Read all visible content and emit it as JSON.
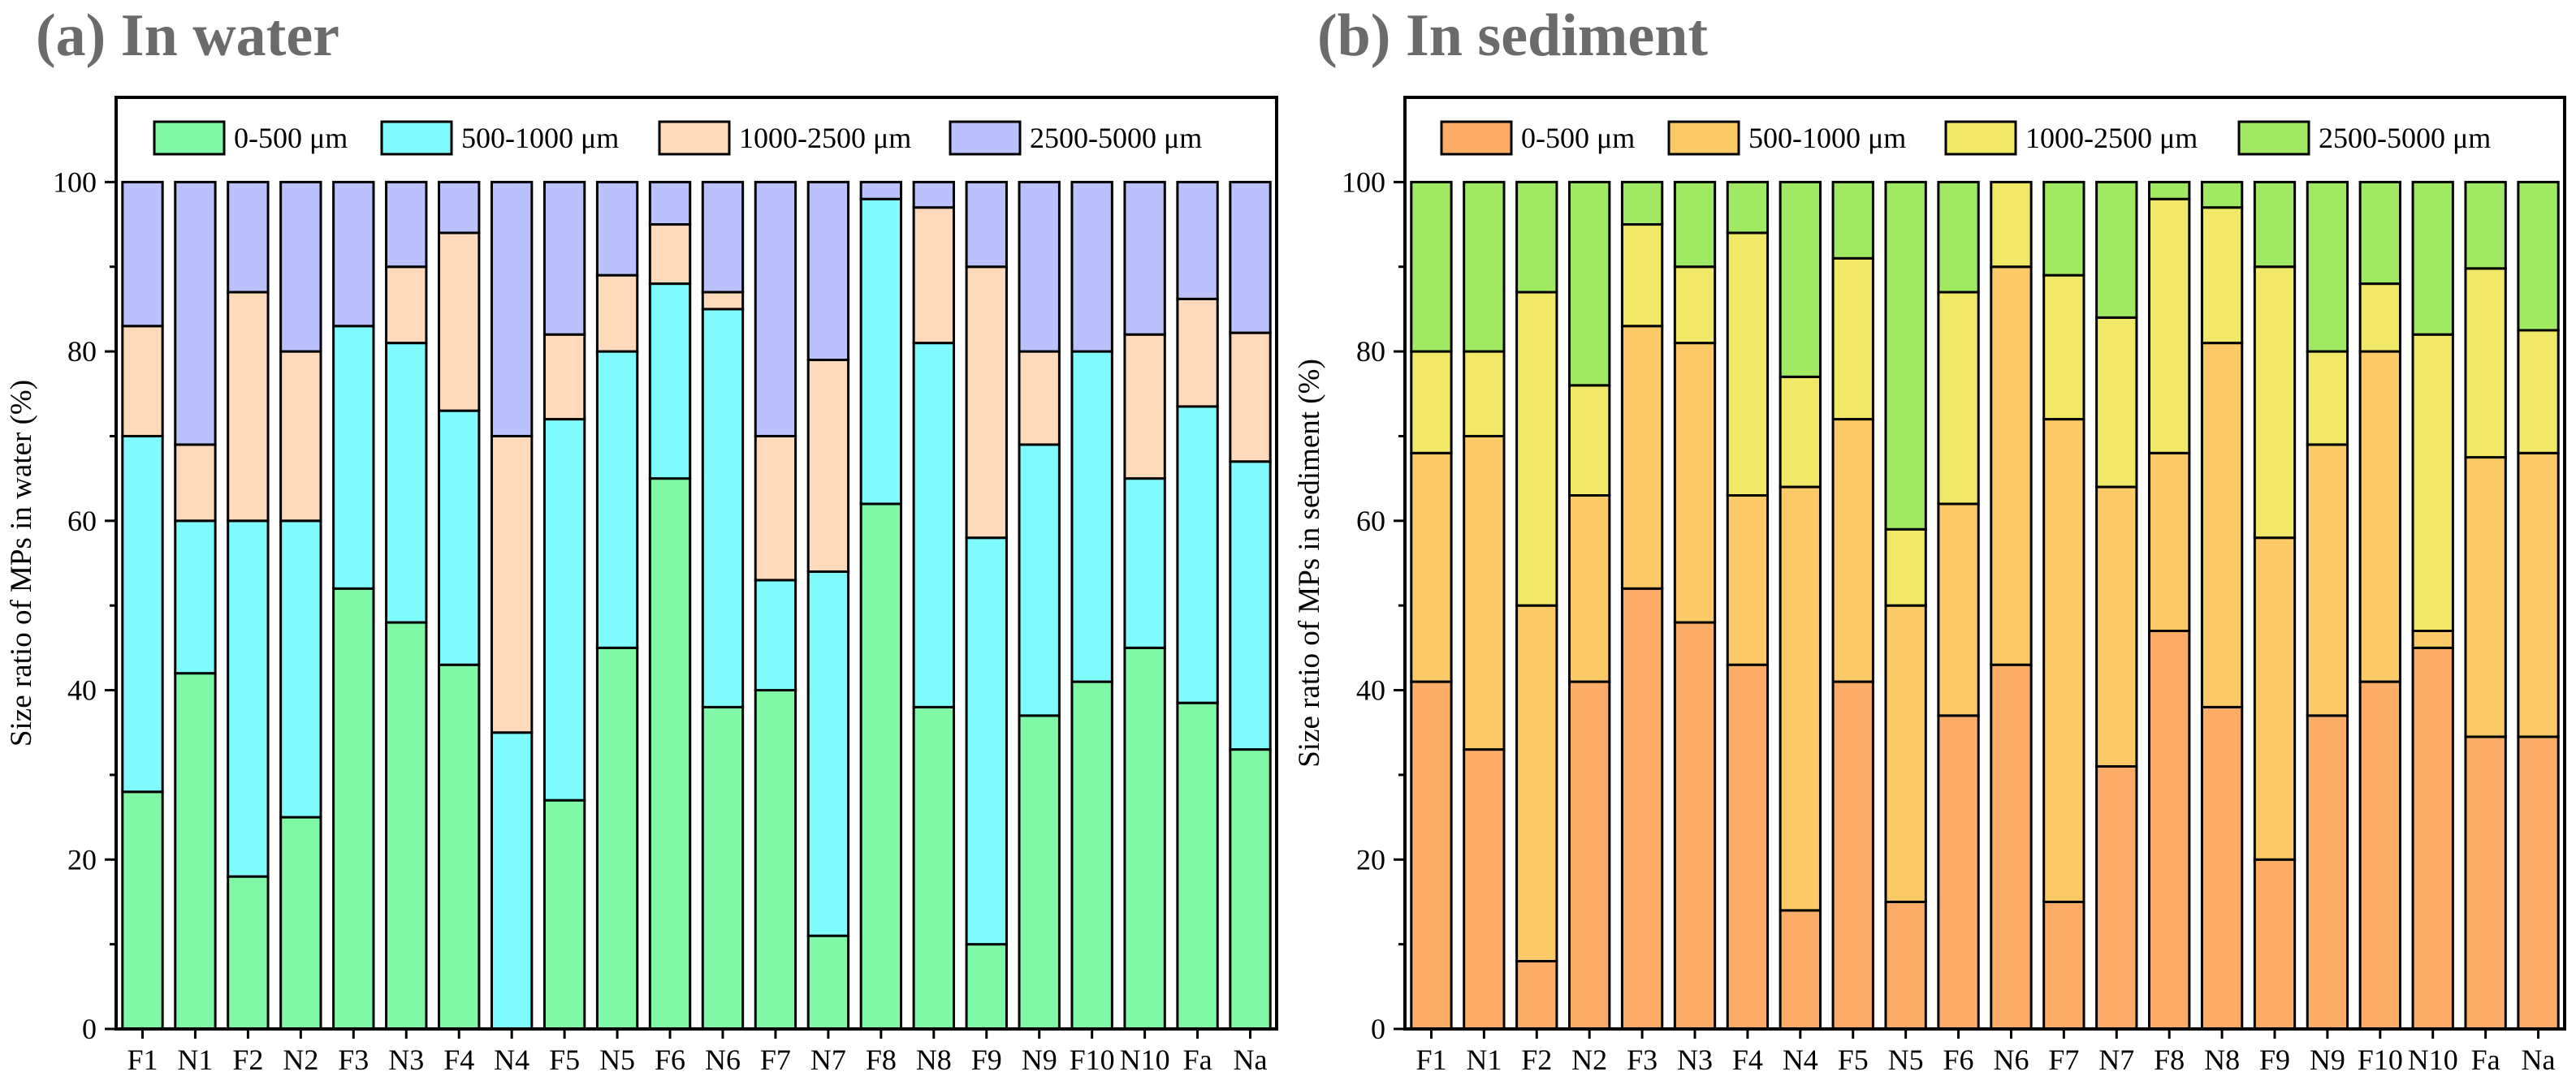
{
  "chart_data": [
    {
      "type": "bar",
      "stacked": true,
      "title": "(a) In water",
      "xlabel": "",
      "ylabel": "Size ratio of MPs in water (%)",
      "ylim": [
        0,
        110
      ],
      "yticks": [
        0,
        20,
        40,
        60,
        80,
        100
      ],
      "legend_position": "top",
      "categories": [
        "F1",
        "N1",
        "F2",
        "N2",
        "F3",
        "N3",
        "F4",
        "N4",
        "F5",
        "N5",
        "F6",
        "N6",
        "F7",
        "N7",
        "F8",
        "N8",
        "F9",
        "N9",
        "F10",
        "N10",
        "Fa",
        "Na"
      ],
      "series": [
        {
          "name": "0-500 μm",
          "color": "#80f9a6",
          "values": [
            28,
            42,
            18,
            25,
            52,
            48,
            43,
            0,
            27,
            45,
            65,
            38,
            40,
            11,
            62,
            38,
            10,
            37,
            41,
            45,
            38.5,
            33
          ]
        },
        {
          "name": "500-1000 μm",
          "color": "#80fbfd",
          "values": [
            42,
            18,
            42,
            35,
            31,
            33,
            30,
            35,
            45,
            35,
            23,
            47,
            13,
            43,
            36,
            43,
            48,
            32,
            39,
            20,
            35,
            34
          ]
        },
        {
          "name": "1000-2500 μm",
          "color": "#fedabb",
          "values": [
            13,
            9,
            27,
            20,
            0,
            9,
            21,
            35,
            10,
            9,
            7,
            2,
            17,
            25,
            0,
            16,
            32,
            11,
            0,
            17,
            12.7,
            15.2
          ]
        },
        {
          "name": "2500-5000 μm",
          "color": "#bbc1fc",
          "values": [
            17,
            31,
            13,
            20,
            17,
            10,
            6,
            30,
            18,
            11,
            5,
            13,
            30,
            21,
            2,
            3,
            10,
            20,
            20,
            18,
            13.8,
            17.8
          ]
        }
      ]
    },
    {
      "type": "bar",
      "stacked": true,
      "title": "(b) In sediment",
      "xlabel": "",
      "ylabel": "Size ratio of MPs in sediment (%)",
      "ylim": [
        0,
        110
      ],
      "yticks": [
        0,
        20,
        40,
        60,
        80,
        100
      ],
      "legend_position": "top",
      "categories": [
        "F1",
        "N1",
        "F2",
        "N2",
        "F3",
        "N3",
        "F4",
        "N4",
        "F5",
        "N5",
        "F6",
        "N6",
        "F7",
        "N7",
        "F8",
        "N8",
        "F9",
        "N9",
        "F10",
        "N10",
        "Fa",
        "Na"
      ],
      "series": [
        {
          "name": "0-500 μm",
          "color": "#fcac66",
          "values": [
            41,
            33,
            8,
            41,
            52,
            48,
            43,
            14,
            41,
            15,
            37,
            43,
            15,
            31,
            47,
            38,
            20,
            37,
            41,
            45,
            34.5,
            34.5
          ]
        },
        {
          "name": "500-1000 μm",
          "color": "#fbc966",
          "values": [
            27,
            37,
            42,
            22,
            31,
            33,
            20,
            50,
            31,
            35,
            25,
            47,
            57,
            33,
            21,
            43,
            38,
            32,
            39,
            2,
            33,
            33.5
          ]
        },
        {
          "name": "1000-2500 μm",
          "color": "#f2e867",
          "values": [
            12,
            10,
            37,
            13,
            12,
            9,
            31,
            13,
            19,
            9,
            25,
            10,
            17,
            20,
            30,
            16,
            32,
            11,
            8,
            35,
            22.3,
            14.5
          ]
        },
        {
          "name": "2500-5000 μm",
          "color": "#a0ea63",
          "values": [
            20,
            20,
            13,
            24,
            5,
            10,
            6,
            23,
            9,
            41,
            13,
            0,
            11,
            16,
            2,
            3,
            10,
            20,
            12,
            18,
            10.2,
            17.5
          ]
        }
      ]
    }
  ]
}
